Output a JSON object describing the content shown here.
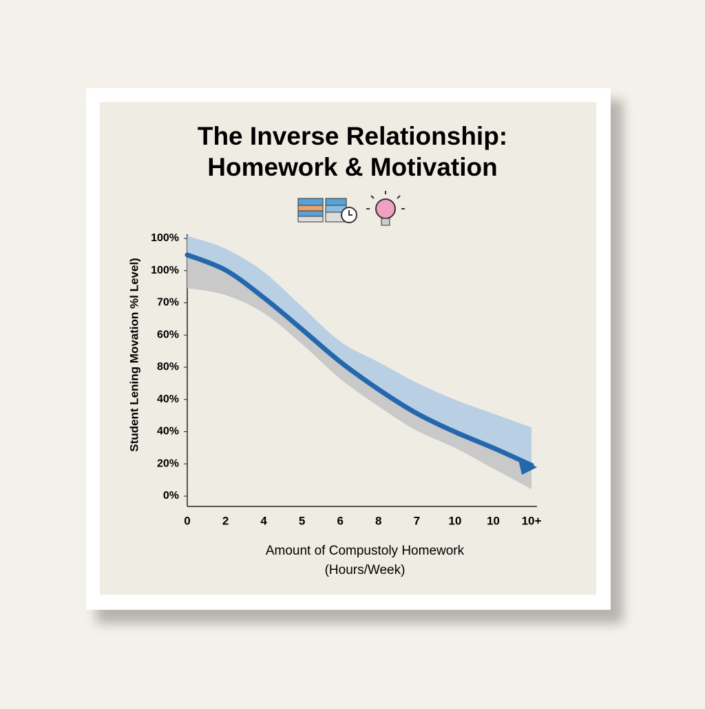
{
  "chart_data": {
    "type": "line",
    "title": [
      "The Inverse Relationship:",
      "Homework & Motivation"
    ],
    "x_label": [
      "Amount of Compustoly Homework",
      "(Hours/Week)"
    ],
    "y_label": "Student Lening Movation %l Level)",
    "categories": [
      "0",
      "2",
      "4",
      "5",
      "6",
      "8",
      "7",
      "10",
      "10",
      "10+"
    ],
    "y_axis_labels": [
      "0%",
      "20%",
      "40%",
      "40%",
      "80%",
      "60%",
      "70%",
      "100%",
      "100%"
    ],
    "ylim": [
      0,
      100
    ],
    "series": [
      {
        "name": "motivation",
        "color": "#2567ad",
        "values": [
          93.6,
          87.7,
          77,
          64.7,
          52.1,
          41.4,
          32.1,
          24.9,
          18.7,
          12
        ]
      }
    ],
    "band_upper": [
      101,
      96,
      87,
      73.5,
      60,
      52,
      44,
      37.4,
      32,
      26.7
    ],
    "band_lower": [
      80.7,
      78,
      71,
      59,
      45.5,
      34.8,
      25.4,
      18.7,
      10.7,
      2.7
    ],
    "band_colors": [
      "#b9cfe4",
      "#c9c9c9"
    ]
  }
}
